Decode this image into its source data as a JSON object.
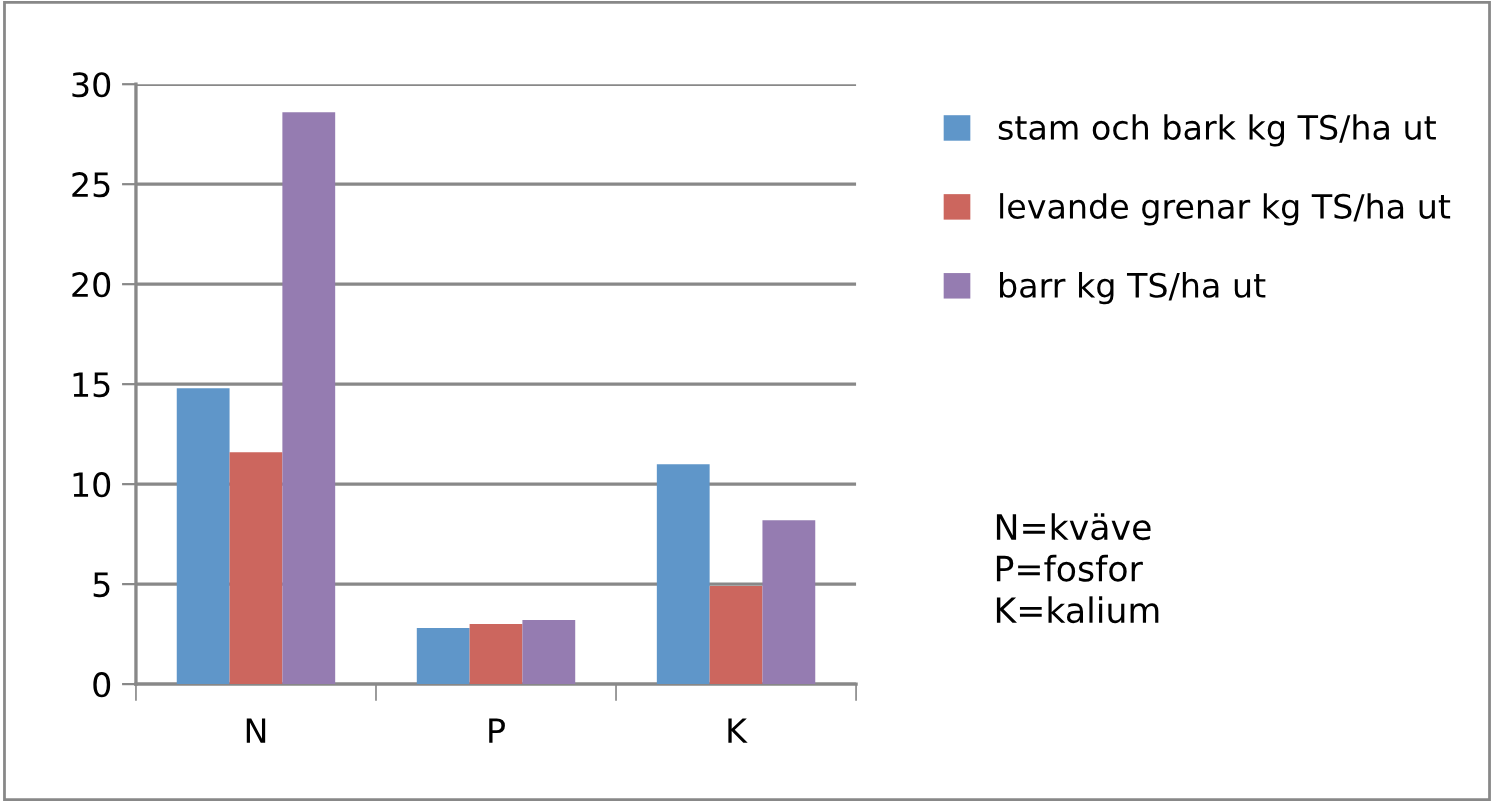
{
  "chart_data": {
    "type": "bar",
    "categories": [
      "N",
      "P",
      "K"
    ],
    "series": [
      {
        "name": "stam och bark kg TS/ha ut",
        "color": "#5f96c9",
        "values": [
          14.8,
          2.8,
          11.0
        ]
      },
      {
        "name": "levande grenar kg TS/ha ut",
        "color": "#cc665e",
        "values": [
          11.6,
          3.0,
          4.9
        ]
      },
      {
        "name": "barr kg TS/ha ut",
        "color": "#957cb1",
        "values": [
          28.6,
          3.2,
          8.2
        ]
      }
    ],
    "ylim": [
      0,
      30
    ],
    "yticks": [
      0,
      5,
      10,
      15,
      20,
      25,
      30
    ],
    "grid": "y",
    "legend": "right",
    "annotations": [
      "N=kväve\nP=fosfor\nK=kalium"
    ]
  }
}
